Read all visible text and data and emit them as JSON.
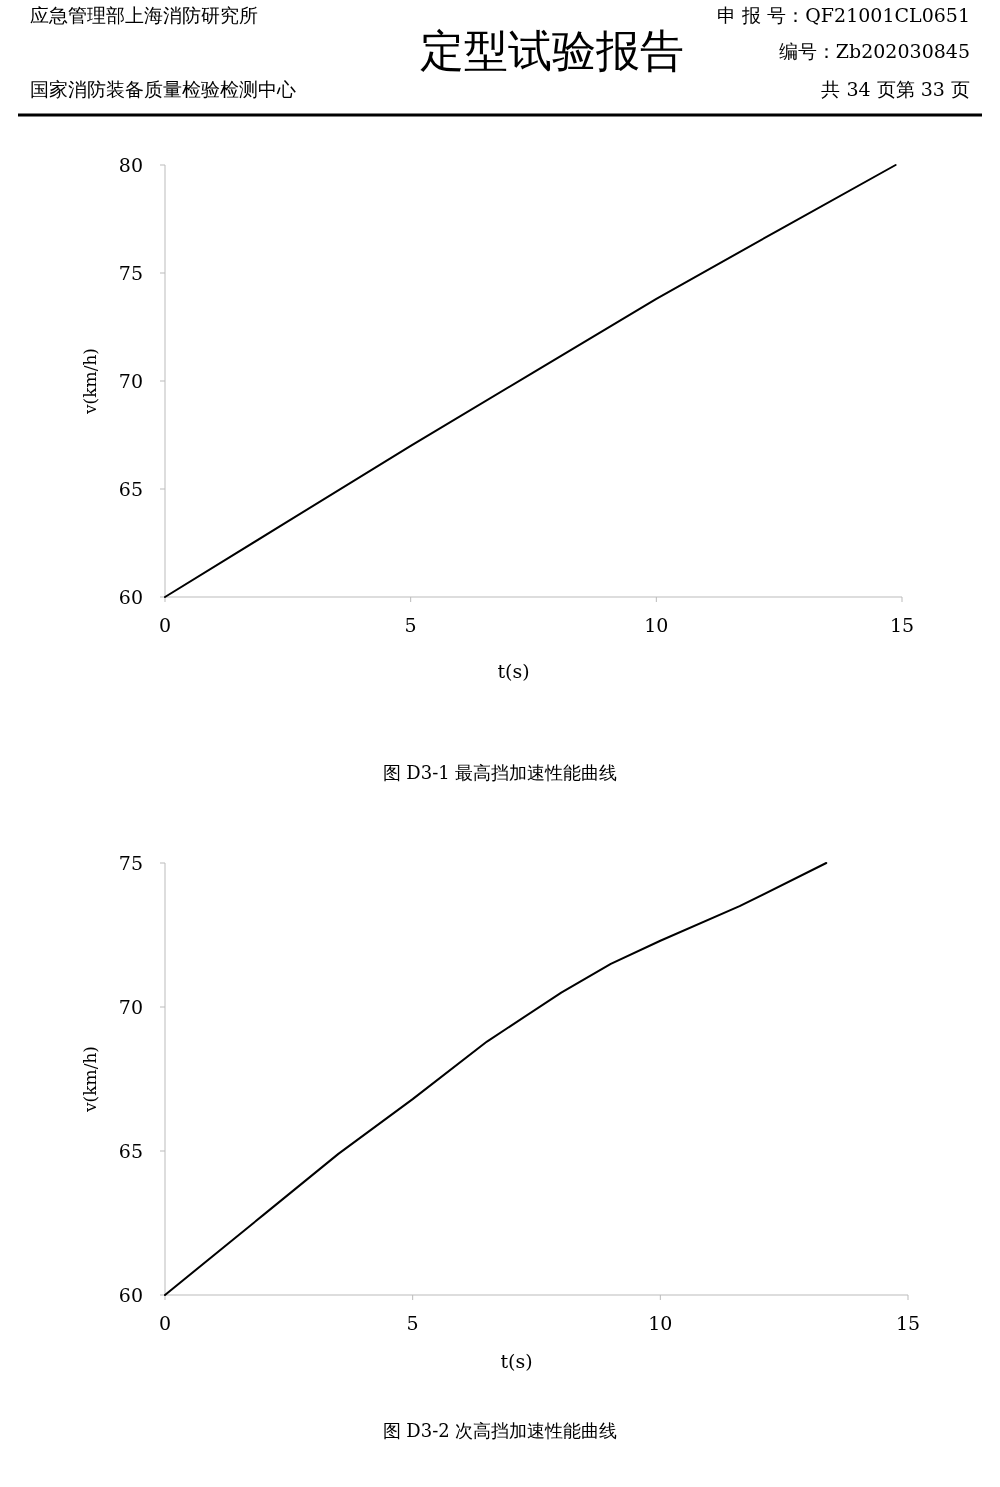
{
  "chart_data": [
    {
      "type": "line",
      "title": "定型试验报告",
      "xlabel": "t(s)",
      "ylabel": "v(km/h)",
      "annotations": [
        "应急管理部上海消防研究所",
        "申 报 号：QF21001CL0651",
        "编号：Zb202030845",
        "国家消防装备质量检验检测中心",
        "共 34 页第 33 页",
        "图 D3-1  最高挡加速性能曲线"
      ],
      "x": [
        0,
        2.5,
        5,
        7.5,
        10,
        12.5,
        14.87
      ],
      "series": [
        {
          "color": "#000000",
          "values": [
            60,
            63.5,
            67.0,
            70.4,
            73.8,
            77.0,
            80
          ]
        }
      ],
      "xlim": [
        0,
        15
      ],
      "xticks": [
        0,
        5,
        10,
        15
      ],
      "ylim": [
        60,
        80
      ],
      "yticks": [
        60,
        65,
        70,
        75,
        80
      ],
      "line_style": "solid"
    },
    {
      "type": "line",
      "xlabel": "t(s)",
      "ylabel": "v(km/h)",
      "annotations": [
        "图 D3-2  次高挡加速性能曲线"
      ],
      "x": [
        0,
        2,
        3.5,
        5,
        6.5,
        8,
        9,
        10,
        11.6,
        13.35
      ],
      "series": [
        {
          "color": "#000000",
          "values": [
            60,
            62.8,
            64.9,
            66.8,
            68.8,
            70.5,
            71.5,
            72.3,
            73.5,
            75
          ]
        }
      ],
      "xlim": [
        0,
        15
      ],
      "xticks": [
        0,
        5,
        10,
        15
      ],
      "ylim": [
        60,
        75
      ],
      "yticks": [
        60,
        65,
        70,
        75
      ],
      "line_style": "solid"
    }
  ]
}
